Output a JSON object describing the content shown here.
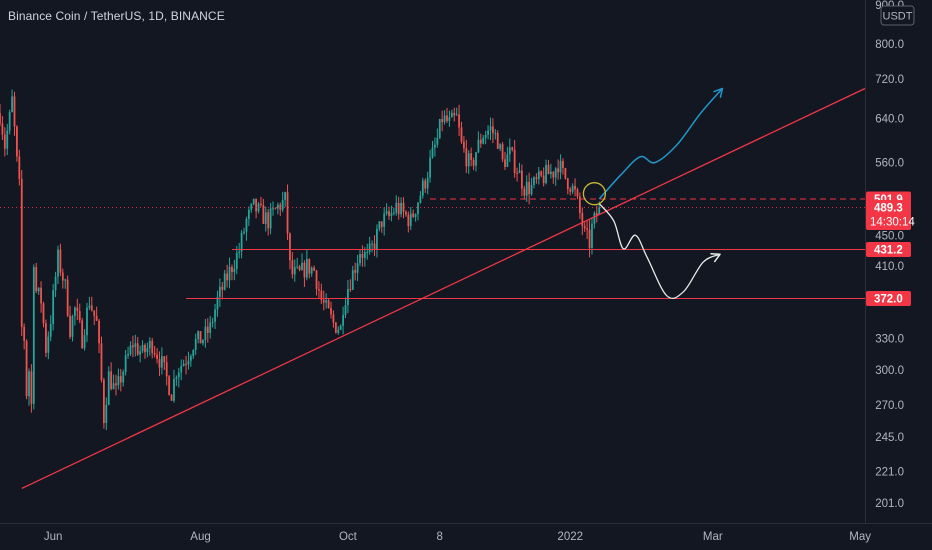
{
  "header": {
    "title": "Binance Coin / TetherUS, 1D, BINANCE"
  },
  "currency_button": "USDT",
  "colors": {
    "background": "#131722",
    "up": "#26a69a",
    "down": "#ef5350",
    "line": "#f23645",
    "cyan_arrow": "#2196c9",
    "white_arrow": "#e8e8e8",
    "circle": "#c9b834",
    "axis_text": "#b2b5be"
  },
  "chart_data": {
    "type": "candlestick",
    "symbol": "Binance Coin / TetherUS",
    "interval": "1D",
    "exchange": "BINANCE",
    "y_scale": "log",
    "ylim": [
      190,
      900
    ],
    "y_ticks": [
      "900.0",
      "800.0",
      "720.0",
      "640.0",
      "560.0",
      "450.0",
      "410.0",
      "330.0",
      "300.0",
      "270.0",
      "245.0",
      "221.0",
      "201.0"
    ],
    "y_tick_values": [
      900,
      800,
      720,
      640,
      560,
      450,
      410,
      330,
      300,
      270,
      245,
      221,
      201
    ],
    "x_start": "2021-05-10",
    "x_end": "2022-05-03",
    "x_ticks": [
      {
        "label": "Jun",
        "date": "2021-06-01"
      },
      {
        "label": "Aug",
        "date": "2021-08-01"
      },
      {
        "label": "Oct",
        "date": "2021-10-01"
      },
      {
        "label": "8",
        "date": "2021-11-08"
      },
      {
        "label": "2022",
        "date": "2022-01-01"
      },
      {
        "label": "Mar",
        "date": "2022-03-01"
      },
      {
        "label": "May",
        "date": "2022-05-01"
      }
    ],
    "price_labels": [
      {
        "label": "501.9",
        "value": 501.9
      },
      {
        "label": "489.3",
        "value": 489.3,
        "countdown": "14:30:14"
      },
      {
        "label": "431.2",
        "value": 431.2
      },
      {
        "label": "372.0",
        "value": 372.0
      }
    ],
    "last_price": 489.3,
    "horizontal_levels": [
      {
        "price": 501.9,
        "style": "dashed",
        "from": "2021-11-04"
      },
      {
        "price": 431.2,
        "style": "solid",
        "from": "2021-08-14"
      },
      {
        "price": 372.0,
        "style": "solid",
        "from": "2021-07-26"
      }
    ],
    "trendline": {
      "from": {
        "date": "2021-05-19",
        "price": 210
      },
      "to": {
        "date": "2022-05-03",
        "price": 700
      }
    },
    "projection_up": [
      {
        "date": "2022-01-13",
        "price": 501.9
      },
      {
        "date": "2022-01-22",
        "price": 540
      },
      {
        "date": "2022-01-30",
        "price": 570
      },
      {
        "date": "2022-02-05",
        "price": 560
      },
      {
        "date": "2022-02-14",
        "price": 590
      },
      {
        "date": "2022-02-24",
        "price": 650
      },
      {
        "date": "2022-03-05",
        "price": 700
      }
    ],
    "projection_down": [
      {
        "date": "2022-01-13",
        "price": 495
      },
      {
        "date": "2022-01-19",
        "price": 470
      },
      {
        "date": "2022-01-23",
        "price": 432
      },
      {
        "date": "2022-01-28",
        "price": 450
      },
      {
        "date": "2022-02-02",
        "price": 420
      },
      {
        "date": "2022-02-10",
        "price": 375
      },
      {
        "date": "2022-02-17",
        "price": 380
      },
      {
        "date": "2022-02-25",
        "price": 415
      },
      {
        "date": "2022-03-04",
        "price": 425
      }
    ],
    "circle_marker": {
      "date": "2022-01-11",
      "price": 510
    },
    "ohlc_anchor_points": [
      [
        "2021-05-10",
        650
      ],
      [
        "2021-05-12",
        590
      ],
      [
        "2021-05-14",
        640
      ],
      [
        "2021-05-15",
        675
      ],
      [
        "2021-05-17",
        560
      ],
      [
        "2021-05-18",
        520
      ],
      [
        "2021-05-19",
        340
      ],
      [
        "2021-05-20",
        330
      ],
      [
        "2021-05-21",
        280
      ],
      [
        "2021-05-22",
        300
      ],
      [
        "2021-05-23",
        270
      ],
      [
        "2021-05-24",
        420
      ],
      [
        "2021-05-25",
        380
      ],
      [
        "2021-05-27",
        370
      ],
      [
        "2021-05-29",
        320
      ],
      [
        "2021-05-31",
        350
      ],
      [
        "2021-06-03",
        420
      ],
      [
        "2021-06-06",
        385
      ],
      [
        "2021-06-08",
        340
      ],
      [
        "2021-06-10",
        360
      ],
      [
        "2021-06-13",
        330
      ],
      [
        "2021-06-16",
        370
      ],
      [
        "2021-06-19",
        345
      ],
      [
        "2021-06-21",
        290
      ],
      [
        "2021-06-22",
        260
      ],
      [
        "2021-06-24",
        295
      ],
      [
        "2021-06-27",
        280
      ],
      [
        "2021-06-30",
        300
      ],
      [
        "2021-07-04",
        325
      ],
      [
        "2021-07-08",
        315
      ],
      [
        "2021-07-12",
        325
      ],
      [
        "2021-07-16",
        305
      ],
      [
        "2021-07-20",
        280
      ],
      [
        "2021-07-22",
        300
      ],
      [
        "2021-07-26",
        310
      ],
      [
        "2021-07-29",
        325
      ],
      [
        "2021-08-02",
        330
      ],
      [
        "2021-08-05",
        340
      ],
      [
        "2021-08-08",
        370
      ],
      [
        "2021-08-11",
        390
      ],
      [
        "2021-08-14",
        410
      ],
      [
        "2021-08-17",
        430
      ],
      [
        "2021-08-20",
        470
      ],
      [
        "2021-08-23",
        490
      ],
      [
        "2021-08-26",
        480
      ],
      [
        "2021-08-29",
        470
      ],
      [
        "2021-09-02",
        490
      ],
      [
        "2021-09-05",
        500
      ],
      [
        "2021-09-07",
        410
      ],
      [
        "2021-09-08",
        400
      ],
      [
        "2021-09-11",
        400
      ],
      [
        "2021-09-14",
        410
      ],
      [
        "2021-09-17",
        405
      ],
      [
        "2021-09-20",
        370
      ],
      [
        "2021-09-22",
        360
      ],
      [
        "2021-09-25",
        345
      ],
      [
        "2021-09-28",
        340
      ],
      [
        "2021-09-29",
        365
      ],
      [
        "2021-10-01",
        385
      ],
      [
        "2021-10-04",
        410
      ],
      [
        "2021-10-06",
        430
      ],
      [
        "2021-10-09",
        420
      ],
      [
        "2021-10-12",
        440
      ],
      [
        "2021-10-15",
        470
      ],
      [
        "2021-10-18",
        475
      ],
      [
        "2021-10-21",
        490
      ],
      [
        "2021-10-24",
        480
      ],
      [
        "2021-10-27",
        470
      ],
      [
        "2021-10-30",
        500
      ],
      [
        "2021-11-02",
        530
      ],
      [
        "2021-11-04",
        560
      ],
      [
        "2021-11-07",
        600
      ],
      [
        "2021-11-09",
        640
      ],
      [
        "2021-11-12",
        630
      ],
      [
        "2021-11-15",
        640
      ],
      [
        "2021-11-17",
        590
      ],
      [
        "2021-11-19",
        570
      ],
      [
        "2021-11-21",
        550
      ],
      [
        "2021-11-23",
        580
      ],
      [
        "2021-11-26",
        610
      ],
      [
        "2021-11-29",
        620
      ],
      [
        "2021-12-02",
        600
      ],
      [
        "2021-12-04",
        560
      ],
      [
        "2021-12-07",
        575
      ],
      [
        "2021-12-10",
        550
      ],
      [
        "2021-12-13",
        520
      ],
      [
        "2021-12-16",
        520
      ],
      [
        "2021-12-19",
        530
      ],
      [
        "2021-12-22",
        540
      ],
      [
        "2021-12-25",
        545
      ],
      [
        "2021-12-27",
        560
      ],
      [
        "2021-12-29",
        540
      ],
      [
        "2022-01-01",
        525
      ],
      [
        "2022-01-03",
        510
      ],
      [
        "2022-01-05",
        480
      ],
      [
        "2022-01-07",
        450
      ],
      [
        "2022-01-09",
        440
      ],
      [
        "2022-01-10",
        460
      ],
      [
        "2022-01-12",
        480
      ],
      [
        "2022-01-13",
        489.3
      ]
    ]
  }
}
